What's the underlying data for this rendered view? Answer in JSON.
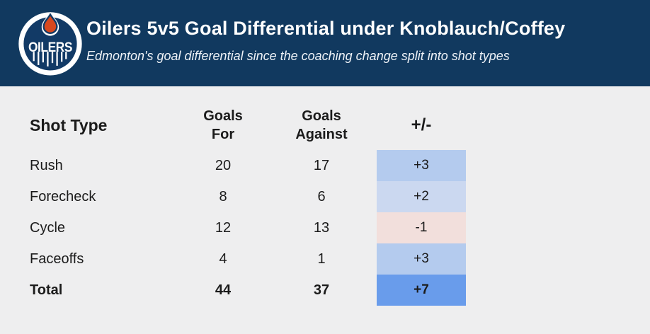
{
  "header": {
    "title": "Oilers 5v5 Goal Differential under Knoblauch/Coffey",
    "subtitle": "Edmonton's goal differential since the coaching change split into shot types",
    "logo": {
      "text": "OILERS"
    }
  },
  "table": {
    "columns": {
      "shot_type": "Shot Type",
      "goals_for": "Goals For",
      "goals_against": "Goals Against",
      "plus_minus": "+/-"
    },
    "rows": [
      {
        "shot_type": "Rush",
        "goals_for": "20",
        "goals_against": "17",
        "plus_minus": "+3",
        "highlight": "#b4cbee",
        "bold": false
      },
      {
        "shot_type": "Forecheck",
        "goals_for": "8",
        "goals_against": "6",
        "plus_minus": "+2",
        "highlight": "#cbd8f0",
        "bold": false
      },
      {
        "shot_type": "Cycle",
        "goals_for": "12",
        "goals_against": "13",
        "plus_minus": "-1",
        "highlight": "#f2dfdc",
        "bold": false
      },
      {
        "shot_type": "Faceoffs",
        "goals_for": "4",
        "goals_against": "1",
        "plus_minus": "+3",
        "highlight": "#b4cbee",
        "bold": false
      },
      {
        "shot_type": "Total",
        "goals_for": "44",
        "goals_against": "37",
        "plus_minus": "+7",
        "highlight": "#699ceb",
        "bold": true
      }
    ]
  },
  "chart_data": {
    "type": "table",
    "title": "Oilers 5v5 Goal Differential under Knoblauch/Coffey",
    "subtitle": "Edmonton's goal differential since the coaching change split into shot types",
    "columns": [
      "Shot Type",
      "Goals For",
      "Goals Against",
      "+/-"
    ],
    "rows": [
      [
        "Rush",
        20,
        17,
        "+3"
      ],
      [
        "Forecheck",
        8,
        6,
        "+2"
      ],
      [
        "Cycle",
        12,
        13,
        "-1"
      ],
      [
        "Faceoffs",
        4,
        1,
        "+3"
      ],
      [
        "Total",
        44,
        37,
        "+7"
      ]
    ],
    "cell_color_scale": {
      "positive_medium": "#b4cbee",
      "positive_light": "#cbd8f0",
      "negative_light": "#f2dfdc",
      "total_strong": "#699ceb"
    }
  },
  "colors": {
    "header_bg": "#11395f",
    "page_bg": "#eeeeef",
    "text": "#1b1b1b",
    "logo_orange": "#d9481e",
    "logo_navy": "#123a66"
  }
}
